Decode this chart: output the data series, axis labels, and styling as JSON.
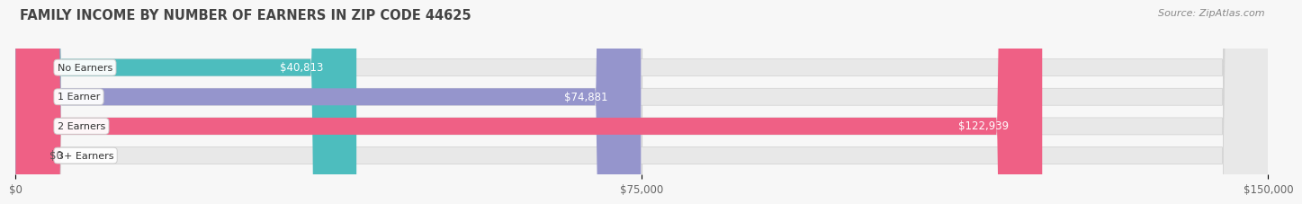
{
  "title": "FAMILY INCOME BY NUMBER OF EARNERS IN ZIP CODE 44625",
  "source": "Source: ZipAtlas.com",
  "categories": [
    "No Earners",
    "1 Earner",
    "2 Earners",
    "3+ Earners"
  ],
  "values": [
    40813,
    74881,
    122939,
    0
  ],
  "bar_colors": [
    "#4dbdbe",
    "#9595cc",
    "#ef6085",
    "#f5c08a"
  ],
  "bar_bg_color": "#e8e8e8",
  "label_texts": [
    "$40,813",
    "$74,881",
    "$122,939",
    "$0"
  ],
  "x_ticks": [
    0,
    75000,
    150000
  ],
  "x_tick_labels": [
    "$0",
    "$75,000",
    "$150,000"
  ],
  "xlim_max": 150000,
  "title_fontsize": 10.5,
  "source_fontsize": 8,
  "label_fontsize": 8.5,
  "tick_fontsize": 8.5,
  "category_fontsize": 8,
  "bar_height": 0.58,
  "background_color": "#f7f7f7",
  "label_color_inside": "#ffffff",
  "label_color_outside": "#555555",
  "grid_color": "#cccccc"
}
